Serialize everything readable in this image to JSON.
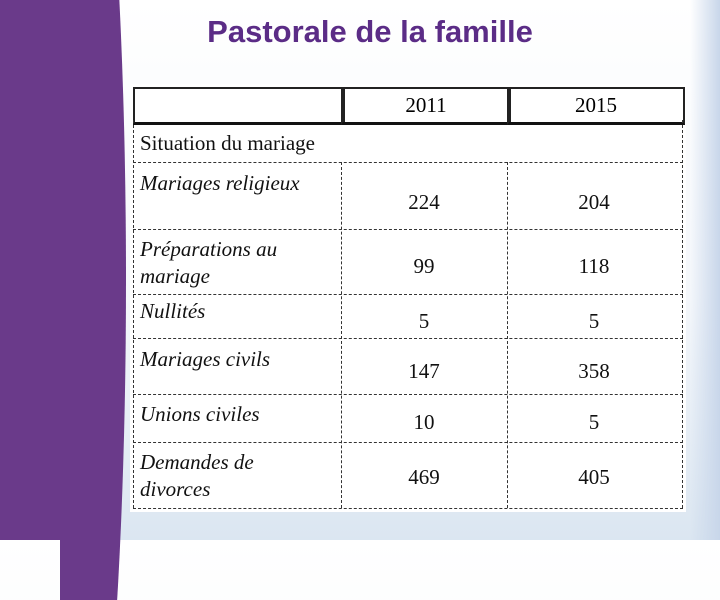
{
  "title": "Pastorale de la famille",
  "table": {
    "columns": [
      "2011",
      "2015"
    ],
    "section_label": "Situation du mariage",
    "rows": [
      {
        "label": "Mariages religieux",
        "v2011": "224",
        "v2015": "204"
      },
      {
        "label": "Préparations au mariage",
        "v2011": "99",
        "v2015": "118"
      },
      {
        "label": "Nullités",
        "v2011": "5",
        "v2015": "5"
      },
      {
        "label": "Mariages civils",
        "v2011": "147",
        "v2015": "358"
      },
      {
        "label": "Unions civiles",
        "v2011": "10",
        "v2015": "5"
      },
      {
        "label": "Demandes de divorces",
        "v2011": "469",
        "v2015": "405"
      }
    ]
  },
  "colors": {
    "title": "#5b2c86",
    "band": "#6a3a8a"
  }
}
